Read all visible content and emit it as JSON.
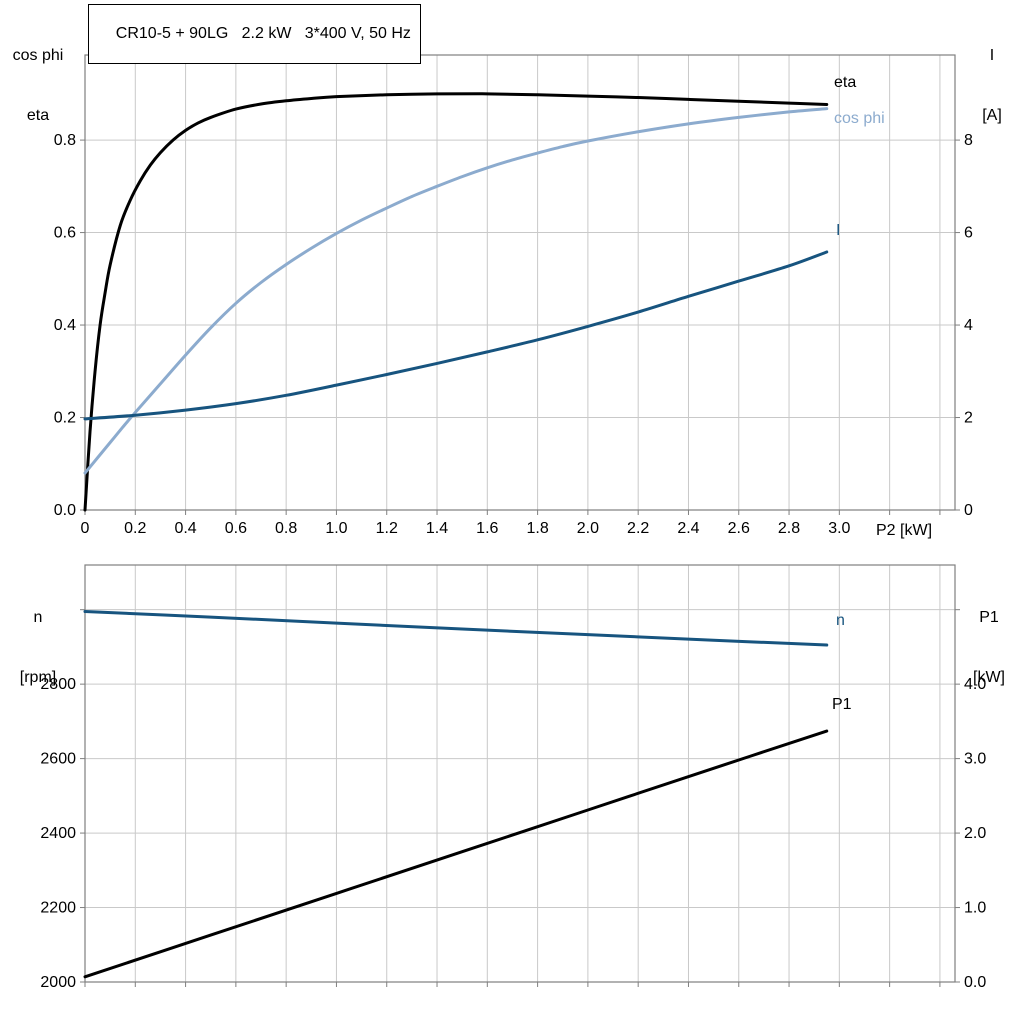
{
  "title_box": "CR10-5 + 90LG   2.2 kW   3*400 V, 50 Hz",
  "colors": {
    "black": "#000000",
    "dark_blue": "#17547f",
    "light_blue": "#8cabce",
    "grid": "#c9c9c9",
    "frame": "#7f7f7f"
  },
  "chart_data": [
    {
      "type": "line",
      "xlabel": "P2 [kW]",
      "ylabel_left_lines": [
        "cos phi",
        "eta"
      ],
      "ylabel_right_lines": [
        "I",
        "[A]"
      ],
      "xlim": [
        0,
        3.46
      ],
      "ylim_left": [
        0,
        0.984
      ],
      "ylim_right": [
        0,
        9.84
      ],
      "grid": true,
      "xticks": [
        0,
        0.2,
        0.4,
        0.6,
        0.8,
        1,
        1.2,
        1.4,
        1.6,
        1.8,
        2,
        2.2,
        2.4,
        2.6,
        2.8,
        3,
        3.2,
        3.4
      ],
      "xtick_labels": [
        "0",
        "0.2",
        "0.4",
        "0.6",
        "0.8",
        "1.0",
        "1.2",
        "1.4",
        "1.6",
        "1.8",
        "2.0",
        "2.2",
        "2.4",
        "2.6",
        "2.8",
        "3.0",
        "",
        ""
      ],
      "yticks_left": [
        0,
        0.2,
        0.4,
        0.6,
        0.8
      ],
      "ytick_left_labels": [
        "0.0",
        "0.2",
        "0.4",
        "0.6",
        "0.8"
      ],
      "yticks_right": [
        0,
        2,
        4,
        6,
        8
      ],
      "ytick_right_labels": [
        "0",
        "2",
        "4",
        "6",
        "8"
      ],
      "series": [
        {
          "name": "eta",
          "axis": "left",
          "color": "#000000",
          "width": 3,
          "points": [
            [
              0,
              0
            ],
            [
              0.02,
              0.17
            ],
            [
              0.04,
              0.3
            ],
            [
              0.06,
              0.4
            ],
            [
              0.08,
              0.47
            ],
            [
              0.1,
              0.53
            ],
            [
              0.14,
              0.615
            ],
            [
              0.18,
              0.67
            ],
            [
              0.22,
              0.712
            ],
            [
              0.26,
              0.746
            ],
            [
              0.3,
              0.773
            ],
            [
              0.35,
              0.8
            ],
            [
              0.4,
              0.821
            ],
            [
              0.45,
              0.837
            ],
            [
              0.5,
              0.849
            ],
            [
              0.6,
              0.867
            ],
            [
              0.7,
              0.878
            ],
            [
              0.8,
              0.885
            ],
            [
              0.9,
              0.89
            ],
            [
              1,
              0.894
            ],
            [
              1.2,
              0.898
            ],
            [
              1.4,
              0.9
            ],
            [
              1.6,
              0.9
            ],
            [
              1.8,
              0.898
            ],
            [
              2,
              0.895
            ],
            [
              2.2,
              0.892
            ],
            [
              2.4,
              0.888
            ],
            [
              2.6,
              0.884
            ],
            [
              2.8,
              0.88
            ],
            [
              2.95,
              0.877
            ]
          ]
        },
        {
          "name": "cos phi",
          "axis": "left",
          "color": "#8cabce",
          "width": 3,
          "points": [
            [
              0,
              0.08
            ],
            [
              0.05,
              0.113
            ],
            [
              0.1,
              0.146
            ],
            [
              0.15,
              0.179
            ],
            [
              0.2,
              0.211
            ],
            [
              0.3,
              0.273
            ],
            [
              0.4,
              0.335
            ],
            [
              0.5,
              0.394
            ],
            [
              0.6,
              0.447
            ],
            [
              0.7,
              0.492
            ],
            [
              0.8,
              0.531
            ],
            [
              0.9,
              0.566
            ],
            [
              1,
              0.598
            ],
            [
              1.1,
              0.627
            ],
            [
              1.2,
              0.653
            ],
            [
              1.3,
              0.678
            ],
            [
              1.4,
              0.7
            ],
            [
              1.5,
              0.721
            ],
            [
              1.6,
              0.74
            ],
            [
              1.7,
              0.757
            ],
            [
              1.8,
              0.772
            ],
            [
              1.9,
              0.786
            ],
            [
              2,
              0.798
            ],
            [
              2.2,
              0.818
            ],
            [
              2.4,
              0.835
            ],
            [
              2.6,
              0.849
            ],
            [
              2.8,
              0.861
            ],
            [
              2.95,
              0.868
            ]
          ]
        },
        {
          "name": "I",
          "axis": "right",
          "color": "#17547f",
          "width": 3,
          "points": [
            [
              0,
              1.97
            ],
            [
              0.2,
              2.05
            ],
            [
              0.4,
              2.16
            ],
            [
              0.6,
              2.3
            ],
            [
              0.8,
              2.48
            ],
            [
              1,
              2.7
            ],
            [
              1.2,
              2.93
            ],
            [
              1.4,
              3.17
            ],
            [
              1.6,
              3.42
            ],
            [
              1.8,
              3.68
            ],
            [
              2,
              3.97
            ],
            [
              2.2,
              4.28
            ],
            [
              2.4,
              4.62
            ],
            [
              2.6,
              4.95
            ],
            [
              2.8,
              5.28
            ],
            [
              2.95,
              5.58
            ]
          ]
        }
      ]
    },
    {
      "type": "line",
      "xlabel": "",
      "ylabel_left_lines": [
        "n",
        "[rpm]"
      ],
      "ylabel_right_lines": [
        "P1",
        "[kW]"
      ],
      "xlim": [
        0,
        3.46
      ],
      "ylim_left": [
        2000,
        3120
      ],
      "ylim_right": [
        0,
        5.6
      ],
      "grid": true,
      "xticks": [
        0,
        0.2,
        0.4,
        0.6,
        0.8,
        1,
        1.2,
        1.4,
        1.6,
        1.8,
        2,
        2.2,
        2.4,
        2.6,
        2.8,
        3,
        3.2,
        3.4
      ],
      "xtick_labels": [
        "",
        "",
        "",
        "",
        "",
        "",
        "",
        "",
        "",
        "",
        "",
        "",
        "",
        "",
        "",
        "",
        "",
        ""
      ],
      "yticks_left": [
        2000,
        2200,
        2400,
        2600,
        2800,
        3000
      ],
      "ytick_left_labels": [
        "2000",
        "2200",
        "2400",
        "2600",
        "2800",
        ""
      ],
      "yticks_right": [
        0,
        1,
        2,
        3,
        4,
        5
      ],
      "ytick_right_labels": [
        "0.0",
        "1.0",
        "2.0",
        "3.0",
        "4.0",
        ""
      ],
      "series": [
        {
          "name": "n",
          "axis": "left",
          "color": "#17547f",
          "width": 3,
          "points": [
            [
              0,
              2995
            ],
            [
              0.5,
              2980
            ],
            [
              1,
              2964
            ],
            [
              1.5,
              2948
            ],
            [
              2,
              2933
            ],
            [
              2.5,
              2918
            ],
            [
              2.95,
              2905
            ]
          ]
        },
        {
          "name": "P1",
          "axis": "right",
          "color": "#000000",
          "width": 3,
          "points": [
            [
              0,
              0.07
            ],
            [
              0.5,
              0.63
            ],
            [
              1,
              1.19
            ],
            [
              1.5,
              1.75
            ],
            [
              2,
              2.31
            ],
            [
              2.5,
              2.87
            ],
            [
              2.95,
              3.37
            ]
          ]
        }
      ]
    }
  ]
}
